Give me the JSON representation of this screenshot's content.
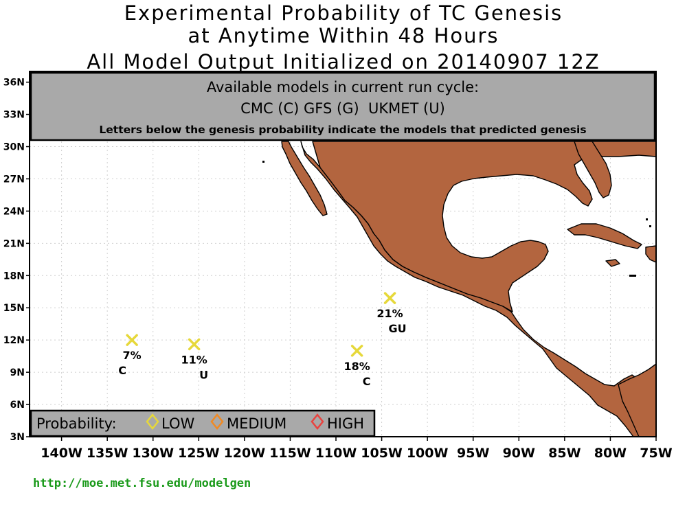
{
  "header": {
    "title_line1": "Experimental Probability of TC Genesis",
    "title_line2": "at Anytime Within 48 Hours",
    "title_line3": "All Model Output Initialized on 20140907 12Z"
  },
  "info_box": {
    "line1": "Available models in current run cycle:",
    "line2": "CMC (C) GFS (G)  UKMET (U)",
    "line3": "Letters below the genesis probability indicate the models that predicted genesis"
  },
  "legend": {
    "label": "Probability:",
    "items": [
      {
        "label": "LOW",
        "color": "#e6d83a"
      },
      {
        "label": "MEDIUM",
        "color": "#f08a24"
      },
      {
        "label": "HIGH",
        "color": "#e8433f"
      }
    ]
  },
  "axes": {
    "lat_labels": [
      "36N",
      "33N",
      "30N",
      "27N",
      "24N",
      "21N",
      "18N",
      "15N",
      "12N",
      "9N",
      "6N",
      "3N"
    ],
    "lon_labels": [
      "140W",
      "135W",
      "130W",
      "125W",
      "120W",
      "115W",
      "110W",
      "105W",
      "100W",
      "95W",
      "90W",
      "85W",
      "80W",
      "75W"
    ],
    "lat_range": [
      3,
      37
    ],
    "lon_range": [
      -143.5,
      -75
    ]
  },
  "colors": {
    "land": "#b3653f",
    "ocean": "#ffffff",
    "box": "#a9a9a9",
    "marker_low": "#e6d83a"
  },
  "genesis_points": [
    {
      "lat": 12.0,
      "lon": -132.3,
      "prob": "7%",
      "models": "C"
    },
    {
      "lat": 11.6,
      "lon": -125.5,
      "prob": "11%",
      "models": "U"
    },
    {
      "lat": 11.0,
      "lon": -107.7,
      "prob": "18%",
      "models": "C"
    },
    {
      "lat": 15.9,
      "lon": -104.1,
      "prob": "21%",
      "models": "GU"
    }
  ],
  "footer": {
    "url": "http://moe.met.fsu.edu/modelgen"
  }
}
